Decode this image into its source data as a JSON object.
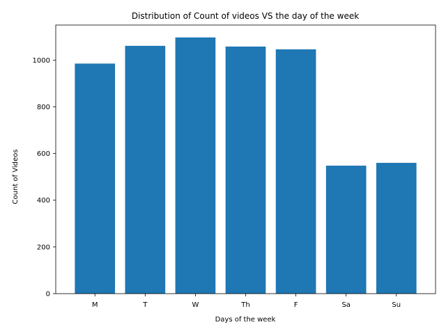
{
  "chart_data": {
    "type": "bar",
    "title": "Distribution of Count of videos VS the day of the week",
    "xlabel": "Days of the week",
    "ylabel": "Count of Videos",
    "categories": [
      "M",
      "T",
      "W",
      "Th",
      "F",
      "Sa",
      "Su"
    ],
    "values": [
      985,
      1061,
      1097,
      1058,
      1046,
      548,
      560
    ],
    "ylim": [
      0,
      1150
    ],
    "yticks": [
      0,
      200,
      400,
      600,
      800,
      1000
    ],
    "grid": false,
    "bar_color": "#1f77b4"
  }
}
